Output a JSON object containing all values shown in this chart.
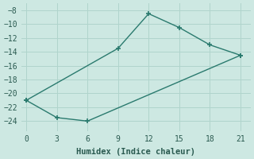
{
  "line_segments": [
    {
      "x": [
        0,
        9,
        12,
        15,
        18,
        21
      ],
      "y": [
        -21,
        -13.5,
        -8.5,
        -10.5,
        -13,
        -14.5
      ]
    },
    {
      "x": [
        0,
        3,
        6,
        21
      ],
      "y": [
        -21,
        -23.5,
        -24,
        -14.5
      ]
    }
  ],
  "xlabel": "Humidex (Indice chaleur)",
  "xlim": [
    -0.5,
    22
  ],
  "ylim": [
    -25.5,
    -7
  ],
  "xticks": [
    0,
    3,
    6,
    9,
    12,
    15,
    18,
    21
  ],
  "yticks": [
    -8,
    -10,
    -12,
    -14,
    -16,
    -18,
    -20,
    -22,
    -24
  ],
  "line_color": "#2a7a6e",
  "bg_color": "#cde8e2",
  "grid_color": "#b0d4cc",
  "font_color": "#2a5a50",
  "xlabel_fontsize": 7.5,
  "tick_fontsize": 7
}
